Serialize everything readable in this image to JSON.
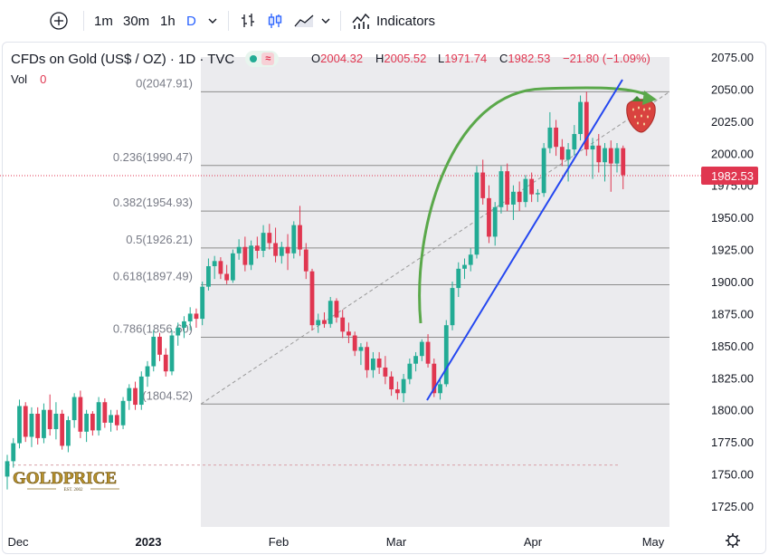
{
  "toolbar": {
    "add_symbol_icon": "plus-circle-icon",
    "intervals": [
      "1m",
      "30m",
      "1h",
      "D"
    ],
    "active_interval": "D",
    "interval_dropdown_icon": "chevron-down-icon",
    "bar_style_icon": "bar-style-icon",
    "candle_style_icon": "candlestick-icon",
    "area_style_icon": "area-style-icon",
    "style_dropdown_icon": "chevron-down-icon",
    "indicators_icon": "indicators-icon",
    "indicators_label": "Indicators"
  },
  "legend": {
    "title": "CFDs on Gold (US$ / OZ) · 1D · TVC",
    "o_label": "O",
    "o_value": "2004.32",
    "h_label": "H",
    "h_value": "2005.52",
    "l_label": "L",
    "l_value": "1971.74",
    "c_label": "C",
    "c_value": "1982.53",
    "change": "−21.80 (−1.09%)",
    "vol_label": "Vol",
    "vol_value": "0"
  },
  "colors": {
    "up": "#22ab94",
    "down": "#e03650",
    "fib_shade": "#ebebee",
    "fib_line": "#8c8c8c",
    "trendline": "#2447f0",
    "arc": "#5aa84a",
    "accent": "#2962ff"
  },
  "price_axis": {
    "ticks": [
      "2075.00",
      "2050.00",
      "2025.00",
      "2000.00",
      "1975.00",
      "1950.00",
      "1925.00",
      "1900.00",
      "1875.00",
      "1850.00",
      "1825.00",
      "1800.00",
      "1775.00",
      "1750.00",
      "1725.00"
    ],
    "last_price": "1982.53"
  },
  "time_axis": {
    "labels": [
      "Dec",
      "2023",
      "Feb",
      "Mar",
      "Apr",
      "May"
    ],
    "settings_icon": "gear-icon"
  },
  "watermark": {
    "brand": "GOLDPRICE",
    "sub": "EST. 2002"
  },
  "fib": {
    "levels": [
      {
        "label": "0(2047.91)",
        "price": 2047.91
      },
      {
        "label": "0.236(1990.47)",
        "price": 1990.47
      },
      {
        "label": "0.382(1954.93)",
        "price": 1954.93
      },
      {
        "label": "0.5(1926.21)",
        "price": 1926.21
      },
      {
        "label": "0.618(1897.49)",
        "price": 1897.49
      },
      {
        "label": "0.786(1856.60)",
        "price": 1856.6
      },
      {
        "label": "(1804.52)",
        "price": 1804.52
      }
    ]
  },
  "chart_data": {
    "type": "candlestick",
    "title": "CFDs on Gold (US$ / OZ) · 1D · TVC",
    "ylim": [
      1715,
      2085
    ],
    "last_price": 1982.53,
    "overlays": [
      "fibonacci-retracement",
      "trendline",
      "arc-annotation",
      "strawberry-marker"
    ],
    "candles": [
      {
        "o": 1748,
        "h": 1765,
        "l": 1738,
        "c": 1760
      },
      {
        "o": 1760,
        "h": 1778,
        "l": 1755,
        "c": 1774
      },
      {
        "o": 1774,
        "h": 1808,
        "l": 1770,
        "c": 1803
      },
      {
        "o": 1803,
        "h": 1806,
        "l": 1775,
        "c": 1779
      },
      {
        "o": 1779,
        "h": 1802,
        "l": 1771,
        "c": 1797
      },
      {
        "o": 1797,
        "h": 1802,
        "l": 1773,
        "c": 1778
      },
      {
        "o": 1778,
        "h": 1805,
        "l": 1774,
        "c": 1800
      },
      {
        "o": 1800,
        "h": 1812,
        "l": 1780,
        "c": 1785
      },
      {
        "o": 1785,
        "h": 1806,
        "l": 1777,
        "c": 1797
      },
      {
        "o": 1797,
        "h": 1800,
        "l": 1769,
        "c": 1772
      },
      {
        "o": 1772,
        "h": 1795,
        "l": 1767,
        "c": 1792
      },
      {
        "o": 1792,
        "h": 1813,
        "l": 1786,
        "c": 1810
      },
      {
        "o": 1810,
        "h": 1815,
        "l": 1778,
        "c": 1783
      },
      {
        "o": 1783,
        "h": 1800,
        "l": 1775,
        "c": 1797
      },
      {
        "o": 1797,
        "h": 1799,
        "l": 1780,
        "c": 1784
      },
      {
        "o": 1784,
        "h": 1810,
        "l": 1780,
        "c": 1806
      },
      {
        "o": 1806,
        "h": 1809,
        "l": 1786,
        "c": 1790
      },
      {
        "o": 1790,
        "h": 1800,
        "l": 1783,
        "c": 1796
      },
      {
        "o": 1796,
        "h": 1800,
        "l": 1784,
        "c": 1788
      },
      {
        "o": 1788,
        "h": 1810,
        "l": 1785,
        "c": 1807
      },
      {
        "o": 1807,
        "h": 1820,
        "l": 1800,
        "c": 1817
      },
      {
        "o": 1817,
        "h": 1822,
        "l": 1800,
        "c": 1804
      },
      {
        "o": 1804,
        "h": 1830,
        "l": 1800,
        "c": 1826
      },
      {
        "o": 1826,
        "h": 1838,
        "l": 1818,
        "c": 1834
      },
      {
        "o": 1834,
        "h": 1862,
        "l": 1830,
        "c": 1857
      },
      {
        "o": 1857,
        "h": 1860,
        "l": 1838,
        "c": 1843
      },
      {
        "o": 1843,
        "h": 1848,
        "l": 1826,
        "c": 1830
      },
      {
        "o": 1830,
        "h": 1862,
        "l": 1827,
        "c": 1858
      },
      {
        "o": 1858,
        "h": 1868,
        "l": 1850,
        "c": 1864
      },
      {
        "o": 1864,
        "h": 1873,
        "l": 1856,
        "c": 1869
      },
      {
        "o": 1869,
        "h": 1880,
        "l": 1862,
        "c": 1875
      },
      {
        "o": 1875,
        "h": 1879,
        "l": 1864,
        "c": 1871
      },
      {
        "o": 1871,
        "h": 1900,
        "l": 1866,
        "c": 1896
      },
      {
        "o": 1896,
        "h": 1918,
        "l": 1893,
        "c": 1912
      },
      {
        "o": 1912,
        "h": 1920,
        "l": 1902,
        "c": 1916
      },
      {
        "o": 1916,
        "h": 1919,
        "l": 1902,
        "c": 1906
      },
      {
        "o": 1906,
        "h": 1913,
        "l": 1898,
        "c": 1901
      },
      {
        "o": 1901,
        "h": 1925,
        "l": 1899,
        "c": 1922
      },
      {
        "o": 1922,
        "h": 1933,
        "l": 1917,
        "c": 1927
      },
      {
        "o": 1927,
        "h": 1935,
        "l": 1908,
        "c": 1913
      },
      {
        "o": 1913,
        "h": 1932,
        "l": 1909,
        "c": 1928
      },
      {
        "o": 1928,
        "h": 1935,
        "l": 1918,
        "c": 1924
      },
      {
        "o": 1924,
        "h": 1944,
        "l": 1919,
        "c": 1938
      },
      {
        "o": 1938,
        "h": 1945,
        "l": 1925,
        "c": 1930
      },
      {
        "o": 1930,
        "h": 1942,
        "l": 1915,
        "c": 1920
      },
      {
        "o": 1920,
        "h": 1931,
        "l": 1914,
        "c": 1927
      },
      {
        "o": 1927,
        "h": 1937,
        "l": 1909,
        "c": 1922
      },
      {
        "o": 1922,
        "h": 1947,
        "l": 1918,
        "c": 1944
      },
      {
        "o": 1944,
        "h": 1959,
        "l": 1920,
        "c": 1925
      },
      {
        "o": 1925,
        "h": 1930,
        "l": 1902,
        "c": 1908
      },
      {
        "o": 1908,
        "h": 1910,
        "l": 1862,
        "c": 1866
      },
      {
        "o": 1866,
        "h": 1875,
        "l": 1860,
        "c": 1870
      },
      {
        "o": 1870,
        "h": 1876,
        "l": 1864,
        "c": 1867
      },
      {
        "o": 1867,
        "h": 1888,
        "l": 1864,
        "c": 1885
      },
      {
        "o": 1885,
        "h": 1887,
        "l": 1868,
        "c": 1872
      },
      {
        "o": 1872,
        "h": 1878,
        "l": 1856,
        "c": 1861
      },
      {
        "o": 1861,
        "h": 1868,
        "l": 1852,
        "c": 1858
      },
      {
        "o": 1858,
        "h": 1861,
        "l": 1842,
        "c": 1846
      },
      {
        "o": 1846,
        "h": 1852,
        "l": 1835,
        "c": 1849
      },
      {
        "o": 1849,
        "h": 1853,
        "l": 1825,
        "c": 1831
      },
      {
        "o": 1831,
        "h": 1845,
        "l": 1825,
        "c": 1840
      },
      {
        "o": 1840,
        "h": 1845,
        "l": 1828,
        "c": 1833
      },
      {
        "o": 1833,
        "h": 1842,
        "l": 1820,
        "c": 1826
      },
      {
        "o": 1826,
        "h": 1830,
        "l": 1811,
        "c": 1816
      },
      {
        "o": 1816,
        "h": 1822,
        "l": 1808,
        "c": 1813
      },
      {
        "o": 1813,
        "h": 1828,
        "l": 1806,
        "c": 1824
      },
      {
        "o": 1824,
        "h": 1840,
        "l": 1820,
        "c": 1836
      },
      {
        "o": 1836,
        "h": 1845,
        "l": 1830,
        "c": 1842
      },
      {
        "o": 1842,
        "h": 1855,
        "l": 1838,
        "c": 1853
      },
      {
        "o": 1853,
        "h": 1859,
        "l": 1833,
        "c": 1836
      },
      {
        "o": 1836,
        "h": 1840,
        "l": 1810,
        "c": 1813
      },
      {
        "o": 1813,
        "h": 1825,
        "l": 1808,
        "c": 1820
      },
      {
        "o": 1820,
        "h": 1870,
        "l": 1818,
        "c": 1866
      },
      {
        "o": 1866,
        "h": 1900,
        "l": 1862,
        "c": 1895
      },
      {
        "o": 1895,
        "h": 1915,
        "l": 1888,
        "c": 1910
      },
      {
        "o": 1910,
        "h": 1918,
        "l": 1902,
        "c": 1913
      },
      {
        "o": 1913,
        "h": 1926,
        "l": 1908,
        "c": 1921
      },
      {
        "o": 1921,
        "h": 1990,
        "l": 1918,
        "c": 1985
      },
      {
        "o": 1985,
        "h": 1995,
        "l": 1960,
        "c": 1965
      },
      {
        "o": 1965,
        "h": 1975,
        "l": 1930,
        "c": 1935
      },
      {
        "o": 1935,
        "h": 1962,
        "l": 1928,
        "c": 1958
      },
      {
        "o": 1958,
        "h": 1990,
        "l": 1953,
        "c": 1986
      },
      {
        "o": 1986,
        "h": 1992,
        "l": 1955,
        "c": 1960
      },
      {
        "o": 1960,
        "h": 1975,
        "l": 1948,
        "c": 1970
      },
      {
        "o": 1970,
        "h": 1978,
        "l": 1955,
        "c": 1962
      },
      {
        "o": 1962,
        "h": 1983,
        "l": 1958,
        "c": 1980
      },
      {
        "o": 1980,
        "h": 1985,
        "l": 1962,
        "c": 1968
      },
      {
        "o": 1968,
        "h": 1972,
        "l": 1962,
        "c": 1969
      },
      {
        "o": 1969,
        "h": 2008,
        "l": 1966,
        "c": 2004
      },
      {
        "o": 2004,
        "h": 2032,
        "l": 2000,
        "c": 2020
      },
      {
        "o": 2020,
        "h": 2026,
        "l": 1998,
        "c": 2005
      },
      {
        "o": 2005,
        "h": 2011,
        "l": 1990,
        "c": 1995
      },
      {
        "o": 1995,
        "h": 2008,
        "l": 1978,
        "c": 2003
      },
      {
        "o": 2003,
        "h": 2022,
        "l": 1998,
        "c": 2015
      },
      {
        "o": 2015,
        "h": 2045,
        "l": 2010,
        "c": 2040
      },
      {
        "o": 2040,
        "h": 2048,
        "l": 1998,
        "c": 2003
      },
      {
        "o": 2003,
        "h": 2012,
        "l": 1980,
        "c": 2006
      },
      {
        "o": 2006,
        "h": 2015,
        "l": 1985,
        "c": 1993
      },
      {
        "o": 1993,
        "h": 2008,
        "l": 1978,
        "c": 2004
      },
      {
        "o": 2004,
        "h": 2010,
        "l": 1970,
        "c": 1992
      },
      {
        "o": 1992,
        "h": 2008,
        "l": 1985,
        "c": 2004
      },
      {
        "o": 2004,
        "h": 2006,
        "l": 1972,
        "c": 1983
      }
    ]
  }
}
